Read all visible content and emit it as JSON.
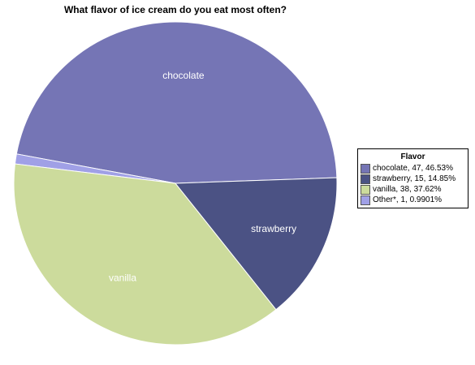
{
  "chart_data": {
    "type": "pie",
    "title": "What flavor of ice cream do you eat most often?",
    "legend_title": "Flavor",
    "legend_position": "right",
    "slices": [
      {
        "label": "chocolate",
        "value": 47,
        "percent": 46.53,
        "color": "#7575b5",
        "slice_label": "chocolate",
        "legend_label": "chocolate, 47, 46.53%"
      },
      {
        "label": "Other*",
        "value": 1,
        "percent": 0.9901,
        "color": "#a0a0e6",
        "slice_label": "",
        "legend_label": "Other*, 1, 0.9901%"
      },
      {
        "label": "vanilla",
        "value": 38,
        "percent": 37.62,
        "color": "#ccdb9c",
        "slice_label": "vanilla",
        "legend_label": "vanilla, 38, 37.62%"
      },
      {
        "label": "strawberry",
        "value": 15,
        "percent": 14.85,
        "color": "#4b5284",
        "slice_label": "strawberry",
        "legend_label": "strawberry, 15, 14.85%"
      }
    ],
    "legend_order": [
      0,
      3,
      2,
      1
    ]
  }
}
